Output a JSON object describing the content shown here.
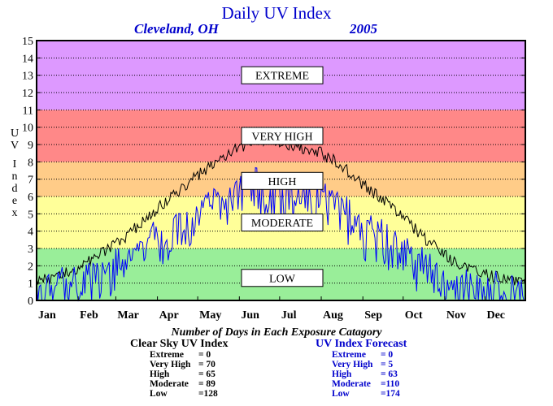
{
  "chart_data": {
    "type": "line",
    "title": "Daily UV Index",
    "location": "Cleveland, OH",
    "year": "2005",
    "ylabel": "UV Index",
    "ylim": [
      0,
      15
    ],
    "yticks": [
      "0",
      "1",
      "2",
      "3",
      "4",
      "5",
      "6",
      "7",
      "8",
      "9",
      "10",
      "11",
      "12",
      "13",
      "14",
      "15"
    ],
    "x_domain_days": [
      1,
      365
    ],
    "months": [
      {
        "label": "Jan",
        "day": 1
      },
      {
        "label": "Feb",
        "day": 32
      },
      {
        "label": "Mar",
        "day": 60
      },
      {
        "label": "Apr",
        "day": 91
      },
      {
        "label": "May",
        "day": 121
      },
      {
        "label": "Jun",
        "day": 152
      },
      {
        "label": "Jul",
        "day": 182
      },
      {
        "label": "Aug",
        "day": 213
      },
      {
        "label": "Sep",
        "day": 244
      },
      {
        "label": "Oct",
        "day": 274
      },
      {
        "label": "Nov",
        "day": 305
      },
      {
        "label": "Dec",
        "day": 335
      }
    ],
    "bands": [
      {
        "label": "LOW",
        "from": 0,
        "to": 3,
        "color": "#99ee99"
      },
      {
        "label": "MODERATE",
        "from": 3,
        "to": 6,
        "color": "#ffff99"
      },
      {
        "label": "HIGH",
        "from": 6,
        "to": 8,
        "color": "#ffcc88"
      },
      {
        "label": "VERY HIGH",
        "from": 8,
        "to": 11,
        "color": "#ff8888"
      },
      {
        "label": "EXTREME",
        "from": 11,
        "to": 15,
        "color": "#dd99ff"
      }
    ],
    "series": [
      {
        "key": "clear_sky",
        "color": "#000000",
        "knots": [
          [
            1,
            1.0
          ],
          [
            15,
            1.4
          ],
          [
            32,
            1.8
          ],
          [
            45,
            2.5
          ],
          [
            60,
            3.2
          ],
          [
            75,
            4.2
          ],
          [
            91,
            5.3
          ],
          [
            105,
            6.2
          ],
          [
            121,
            7.2
          ],
          [
            135,
            8.0
          ],
          [
            152,
            8.8
          ],
          [
            165,
            9.3
          ],
          [
            175,
            9.2
          ],
          [
            182,
            9.1
          ],
          [
            195,
            8.9
          ],
          [
            213,
            8.5
          ],
          [
            228,
            7.8
          ],
          [
            244,
            6.7
          ],
          [
            259,
            5.8
          ],
          [
            274,
            4.8
          ],
          [
            290,
            3.6
          ],
          [
            305,
            2.6
          ],
          [
            320,
            1.9
          ],
          [
            335,
            1.5
          ],
          [
            350,
            1.2
          ],
          [
            365,
            1.0
          ]
        ],
        "noise": 0.35
      },
      {
        "key": "forecast",
        "color": "#0000ff",
        "knots": [
          [
            1,
            0.9
          ],
          [
            15,
            1.2
          ],
          [
            32,
            1.5
          ],
          [
            45,
            2.0
          ],
          [
            60,
            2.5
          ],
          [
            75,
            3.3
          ],
          [
            91,
            4.2
          ],
          [
            105,
            4.8
          ],
          [
            121,
            5.6
          ],
          [
            135,
            6.0
          ],
          [
            152,
            6.8
          ],
          [
            165,
            7.2
          ],
          [
            175,
            6.5
          ],
          [
            182,
            6.6
          ],
          [
            195,
            6.7
          ],
          [
            213,
            6.4
          ],
          [
            228,
            6.0
          ],
          [
            244,
            4.8
          ],
          [
            259,
            4.0
          ],
          [
            274,
            3.4
          ],
          [
            290,
            2.3
          ],
          [
            305,
            1.7
          ],
          [
            320,
            1.4
          ],
          [
            335,
            1.1
          ],
          [
            350,
            0.9
          ],
          [
            365,
            0.8
          ]
        ],
        "noise": 1.6
      }
    ],
    "note": "Number of Days in Each Exposure Catagory",
    "summary": {
      "clear_sky": {
        "heading": "Clear Sky UV Index",
        "rows": [
          {
            "label": "Extreme",
            "value": "=   0"
          },
          {
            "label": "Very High",
            "value": "= 70"
          },
          {
            "label": "High",
            "value": "= 65"
          },
          {
            "label": "Moderate",
            "value": "= 89"
          },
          {
            "label": "Low",
            "value": "=128"
          }
        ]
      },
      "forecast": {
        "heading": "UV Index Forecast",
        "rows": [
          {
            "label": "Extreme",
            "value": "=   0"
          },
          {
            "label": "Very High",
            "value": "=   5"
          },
          {
            "label": "High",
            "value": "= 63"
          },
          {
            "label": "Moderate",
            "value": "=110"
          },
          {
            "label": "Low",
            "value": "=174"
          }
        ]
      }
    }
  }
}
